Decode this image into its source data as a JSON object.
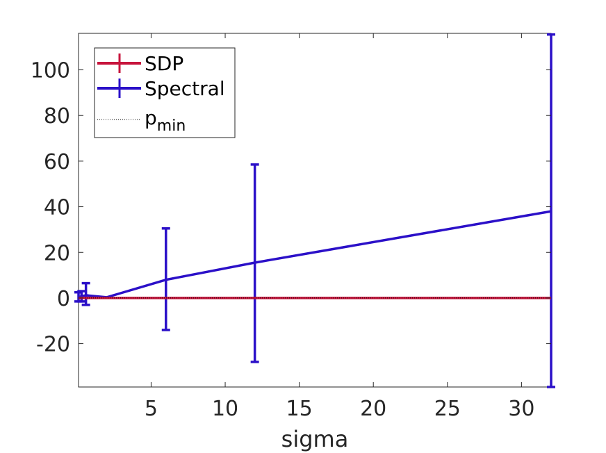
{
  "chart_data": {
    "type": "line",
    "xlabel": "sigma",
    "ylabel": "",
    "title": "",
    "xlim": [
      0.1,
      32
    ],
    "ylim": [
      -39,
      116
    ],
    "xticks": [
      5,
      10,
      15,
      20,
      25,
      30
    ],
    "yticks": [
      -20,
      0,
      20,
      40,
      60,
      80,
      100
    ],
    "grid": false,
    "legend_position": "top-left",
    "series": [
      {
        "name": "SDP",
        "color": "#c7143c",
        "x": [
          0.1,
          0.3,
          0.6,
          2,
          6,
          12,
          32
        ],
        "y": [
          0,
          0,
          0,
          0,
          0,
          0,
          0
        ],
        "err_low": [
          0,
          0,
          0,
          0,
          0,
          0,
          0
        ],
        "err_high": [
          0,
          0,
          0,
          0,
          0,
          0,
          0
        ],
        "error_bars": false
      },
      {
        "name": "Spectral",
        "color": "#2b10c8",
        "x": [
          0.1,
          0.3,
          0.6,
          2,
          6,
          12,
          32
        ],
        "y": [
          0.3,
          0.8,
          1.2,
          0.3,
          8,
          15.5,
          38
        ],
        "err_low": [
          -1.5,
          -1.5,
          -3,
          null,
          -14,
          -28,
          -39
        ],
        "err_high": [
          2.5,
          3,
          6.5,
          null,
          30.5,
          58.5,
          115.5
        ],
        "error_bars": true
      },
      {
        "name": "p_min",
        "label_main": "p",
        "label_sub": "min",
        "color": "#000000",
        "style": "dotted",
        "x": [
          0.1,
          32
        ],
        "y": [
          0,
          0
        ]
      }
    ]
  }
}
